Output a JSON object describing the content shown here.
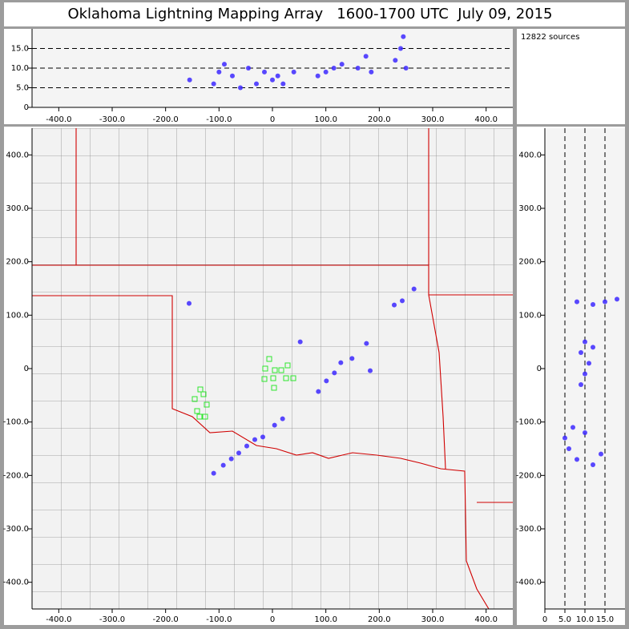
{
  "title": "Oklahoma Lightning Mapping Array   1600-1700 UTC  July 09, 2015",
  "source_count": "12822 sources",
  "chart_data": [
    {
      "type": "scatter",
      "xlim": [
        -450,
        450
      ],
      "ylim": [
        0,
        20
      ],
      "xticks": [
        {
          "value": -400,
          "label": "-400.0"
        },
        {
          "value": -300,
          "label": "-300.0"
        },
        {
          "value": -200,
          "label": "-200.0"
        },
        {
          "value": -100,
          "label": "-100.0"
        },
        0,
        {
          "value": 100,
          "label": "100.0"
        },
        {
          "value": 200,
          "label": "200.0"
        },
        {
          "value": 300,
          "label": "300.0"
        },
        {
          "value": 400,
          "label": "400.0"
        }
      ],
      "yticks": [
        0,
        {
          "value": 5,
          "label": "5.0"
        },
        {
          "value": 10,
          "label": "10.0"
        },
        {
          "value": 15,
          "label": "15.0"
        }
      ],
      "dashed_grid": "y",
      "series": [
        {
          "color": "#3c28ff",
          "x": [
            -155,
            -110,
            -100,
            -90,
            -75,
            -60,
            -45,
            -30,
            -15,
            0,
            10,
            20,
            40,
            85,
            100,
            115,
            130,
            160,
            175,
            185,
            230,
            240,
            245,
            250
          ],
          "values": [
            7,
            6,
            9,
            11,
            8,
            5,
            10,
            6,
            9,
            7,
            8,
            6,
            9,
            8,
            9,
            10,
            11,
            10,
            13,
            9,
            12,
            15,
            18,
            10
          ]
        }
      ]
    },
    {
      "type": "scatter",
      "xlim": [
        -450,
        450
      ],
      "ylim": [
        -450,
        450
      ],
      "xticks": [
        {
          "value": -400,
          "label": "-400.0"
        },
        {
          "value": -300,
          "label": "-300.0"
        },
        {
          "value": -200,
          "label": "-200.0"
        },
        {
          "value": -100,
          "label": "-100.0"
        },
        0,
        {
          "value": 100,
          "label": "100.0"
        },
        {
          "value": 200,
          "label": "200.0"
        },
        {
          "value": 300,
          "label": "300.0"
        },
        {
          "value": 400,
          "label": "400.0"
        }
      ],
      "yticks": [
        {
          "value": -400,
          "label": "-400.0"
        },
        {
          "value": -300,
          "label": "-300.0"
        },
        {
          "value": -200,
          "label": "-200.0"
        },
        {
          "value": -100,
          "label": "-100.0"
        },
        0,
        {
          "value": 100,
          "label": "100.0"
        },
        {
          "value": 200,
          "label": "200.0"
        },
        {
          "value": 300,
          "label": "300.0"
        },
        {
          "value": 400,
          "label": "400.0"
        }
      ],
      "map": true,
      "series": [
        {
          "color": "#3c28ff",
          "x": [
            -110,
            -92,
            -77,
            -63,
            -48,
            -33,
            -18,
            4,
            19,
            86,
            101,
            116,
            128,
            176,
            183,
            228,
            243,
            265,
            -156,
            52,
            149
          ],
          "values": [
            -196,
            -181,
            -169,
            -158,
            -145,
            -133,
            -128,
            -106,
            -94,
            -43,
            -23,
            -8,
            11,
            47,
            -4,
            119,
            127,
            149,
            122,
            50,
            19
          ]
        }
      ]
    },
    {
      "type": "scatter",
      "xlim": [
        0,
        20
      ],
      "ylim": [
        -450,
        450
      ],
      "xticks": [
        0,
        {
          "value": 5,
          "label": "5.0"
        },
        {
          "value": 10,
          "label": "10.0"
        },
        {
          "value": 15,
          "label": "15.0"
        }
      ],
      "yticks": [
        {
          "value": -400,
          "label": "-400.0"
        },
        {
          "value": -300,
          "label": "-300.0"
        },
        {
          "value": -200,
          "label": "-200.0"
        },
        {
          "value": -100,
          "label": "-100.0"
        },
        0,
        {
          "value": 100,
          "label": "100.0"
        },
        {
          "value": 200,
          "label": "200.0"
        },
        {
          "value": 300,
          "label": "300.0"
        },
        {
          "value": 400,
          "label": "400.0"
        }
      ],
      "dashed_grid": "x",
      "series": [
        {
          "color": "#3c28ff",
          "x": [
            5,
            6,
            8,
            10,
            12,
            14,
            7,
            9,
            10,
            11,
            9,
            10,
            12,
            8,
            12,
            15,
            18
          ],
          "values": [
            -130,
            -150,
            -170,
            -120,
            -180,
            -160,
            -110,
            -30,
            -10,
            10,
            30,
            50,
            40,
            125,
            120,
            125,
            130
          ]
        }
      ]
    }
  ]
}
